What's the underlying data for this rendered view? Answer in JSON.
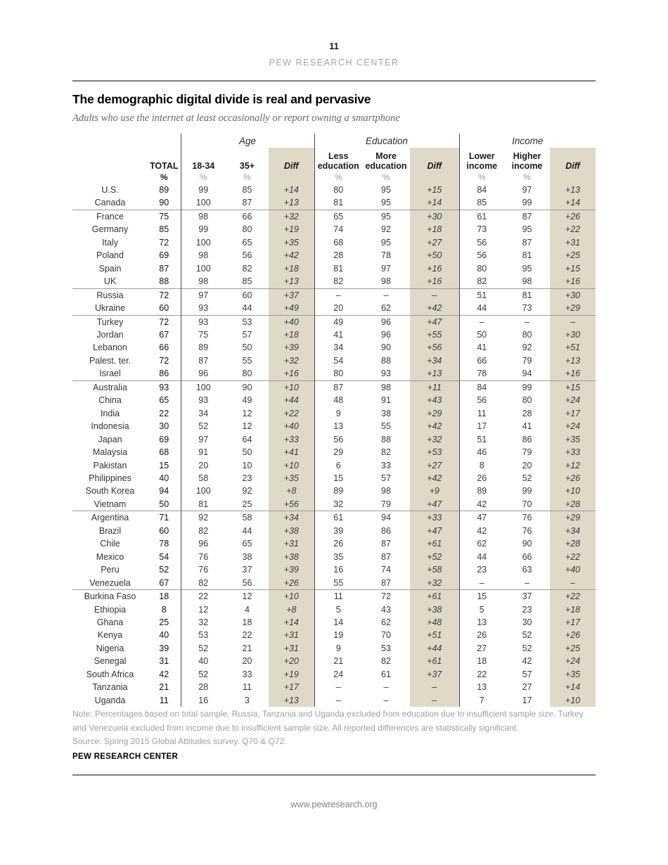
{
  "page": {
    "page_number": "11",
    "header_brand": "PEW RESEARCH CENTER",
    "footer_url": "www.pewresearch.org"
  },
  "report": {
    "title": "The demographic digital divide is real and pervasive",
    "subtitle": "Adults who use the internet at least occasionally or report owning a smartphone",
    "note": "Note: Percentages based on total sample. Russia, Tanzania and Uganda excluded from education due to insufficient sample size. Turkey and Venezuela excluded from income due to insufficient sample size. All reported differences are statistically significant.",
    "source": "Source: Spring 2015 Global Attitudes survey. Q70 & Q72.",
    "brand": "PEW RESEARCH CENTER"
  },
  "colors": {
    "diff_column_background": "#dedac7",
    "rule_gray": "#7d7d7d",
    "group_separator": "#9b9b9b",
    "note_gray": "#9e9e9e"
  },
  "table": {
    "group_labels": {
      "age": "Age",
      "education": "Education",
      "income": "Income"
    },
    "headers": {
      "total": "TOTAL",
      "age_young": "18-34",
      "age_old": "35+",
      "diff": "Diff",
      "edu_less": "Less education",
      "edu_more": "More education",
      "inc_low": "Lower income",
      "inc_high": "Higher income",
      "pct": "%"
    },
    "group_start_indices": [
      2,
      8,
      10,
      15,
      25,
      31
    ],
    "rows": [
      [
        "U.S.",
        "89",
        "99",
        "85",
        "+14",
        "80",
        "95",
        "+15",
        "84",
        "97",
        "+13"
      ],
      [
        "Canada",
        "90",
        "100",
        "87",
        "+13",
        "81",
        "95",
        "+14",
        "85",
        "99",
        "+14"
      ],
      [
        "France",
        "75",
        "98",
        "66",
        "+32",
        "65",
        "95",
        "+30",
        "61",
        "87",
        "+26"
      ],
      [
        "Germany",
        "85",
        "99",
        "80",
        "+19",
        "74",
        "92",
        "+18",
        "73",
        "95",
        "+22"
      ],
      [
        "Italy",
        "72",
        "100",
        "65",
        "+35",
        "68",
        "95",
        "+27",
        "56",
        "87",
        "+31"
      ],
      [
        "Poland",
        "69",
        "98",
        "56",
        "+42",
        "28",
        "78",
        "+50",
        "56",
        "81",
        "+25"
      ],
      [
        "Spain",
        "87",
        "100",
        "82",
        "+18",
        "81",
        "97",
        "+16",
        "80",
        "95",
        "+15"
      ],
      [
        "UK",
        "88",
        "98",
        "85",
        "+13",
        "82",
        "98",
        "+16",
        "82",
        "98",
        "+16"
      ],
      [
        "Russia",
        "72",
        "97",
        "60",
        "+37",
        "–",
        "–",
        "–",
        "51",
        "81",
        "+30"
      ],
      [
        "Ukraine",
        "60",
        "93",
        "44",
        "+49",
        "20",
        "62",
        "+42",
        "44",
        "73",
        "+29"
      ],
      [
        "Turkey",
        "72",
        "93",
        "53",
        "+40",
        "49",
        "96",
        "+47",
        "–",
        "–",
        "–"
      ],
      [
        "Jordan",
        "67",
        "75",
        "57",
        "+18",
        "41",
        "96",
        "+55",
        "50",
        "80",
        "+30"
      ],
      [
        "Lebanon",
        "66",
        "89",
        "50",
        "+39",
        "34",
        "90",
        "+56",
        "41",
        "92",
        "+51"
      ],
      [
        "Palest. ter.",
        "72",
        "87",
        "55",
        "+32",
        "54",
        "88",
        "+34",
        "66",
        "79",
        "+13"
      ],
      [
        "Israel",
        "86",
        "96",
        "80",
        "+16",
        "80",
        "93",
        "+13",
        "78",
        "94",
        "+16"
      ],
      [
        "Australia",
        "93",
        "100",
        "90",
        "+10",
        "87",
        "98",
        "+11",
        "84",
        "99",
        "+15"
      ],
      [
        "China",
        "65",
        "93",
        "49",
        "+44",
        "48",
        "91",
        "+43",
        "56",
        "80",
        "+24"
      ],
      [
        "India",
        "22",
        "34",
        "12",
        "+22",
        "9",
        "38",
        "+29",
        "11",
        "28",
        "+17"
      ],
      [
        "Indonesia",
        "30",
        "52",
        "12",
        "+40",
        "13",
        "55",
        "+42",
        "17",
        "41",
        "+24"
      ],
      [
        "Japan",
        "69",
        "97",
        "64",
        "+33",
        "56",
        "88",
        "+32",
        "51",
        "86",
        "+35"
      ],
      [
        "Malaysia",
        "68",
        "91",
        "50",
        "+41",
        "29",
        "82",
        "+53",
        "46",
        "79",
        "+33"
      ],
      [
        "Pakistan",
        "15",
        "20",
        "10",
        "+10",
        "6",
        "33",
        "+27",
        "8",
        "20",
        "+12"
      ],
      [
        "Philippines",
        "40",
        "58",
        "23",
        "+35",
        "15",
        "57",
        "+42",
        "26",
        "52",
        "+26"
      ],
      [
        "South Korea",
        "94",
        "100",
        "92",
        "+8",
        "89",
        "98",
        "+9",
        "89",
        "99",
        "+10"
      ],
      [
        "Vietnam",
        "50",
        "81",
        "25",
        "+56",
        "32",
        "79",
        "+47",
        "42",
        "70",
        "+28"
      ],
      [
        "Argentina",
        "71",
        "92",
        "58",
        "+34",
        "61",
        "94",
        "+33",
        "47",
        "76",
        "+29"
      ],
      [
        "Brazil",
        "60",
        "82",
        "44",
        "+38",
        "39",
        "86",
        "+47",
        "42",
        "76",
        "+34"
      ],
      [
        "Chile",
        "78",
        "96",
        "65",
        "+31",
        "26",
        "87",
        "+61",
        "62",
        "90",
        "+28"
      ],
      [
        "Mexico",
        "54",
        "76",
        "38",
        "+38",
        "35",
        "87",
        "+52",
        "44",
        "66",
        "+22"
      ],
      [
        "Peru",
        "52",
        "76",
        "37",
        "+39",
        "16",
        "74",
        "+58",
        "23",
        "63",
        "+40"
      ],
      [
        "Venezuela",
        "67",
        "82",
        "56",
        "+26",
        "55",
        "87",
        "+32",
        "–",
        "–",
        "–"
      ],
      [
        "Burkina Faso",
        "18",
        "22",
        "12",
        "+10",
        "11",
        "72",
        "+61",
        "15",
        "37",
        "+22"
      ],
      [
        "Ethiopia",
        "8",
        "12",
        "4",
        "+8",
        "5",
        "43",
        "+38",
        "5",
        "23",
        "+18"
      ],
      [
        "Ghana",
        "25",
        "32",
        "18",
        "+14",
        "14",
        "62",
        "+48",
        "13",
        "30",
        "+17"
      ],
      [
        "Kenya",
        "40",
        "53",
        "22",
        "+31",
        "19",
        "70",
        "+51",
        "26",
        "52",
        "+26"
      ],
      [
        "Nigeria",
        "39",
        "52",
        "21",
        "+31",
        "9",
        "53",
        "+44",
        "27",
        "52",
        "+25"
      ],
      [
        "Senegal",
        "31",
        "40",
        "20",
        "+20",
        "21",
        "82",
        "+61",
        "18",
        "42",
        "+24"
      ],
      [
        "South Africa",
        "42",
        "52",
        "33",
        "+19",
        "24",
        "61",
        "+37",
        "22",
        "57",
        "+35"
      ],
      [
        "Tanzania",
        "21",
        "28",
        "11",
        "+17",
        "–",
        "–",
        "–",
        "13",
        "27",
        "+14"
      ],
      [
        "Uganda",
        "11",
        "16",
        "3",
        "+13",
        "–",
        "–",
        "–",
        "7",
        "17",
        "+10"
      ]
    ]
  }
}
